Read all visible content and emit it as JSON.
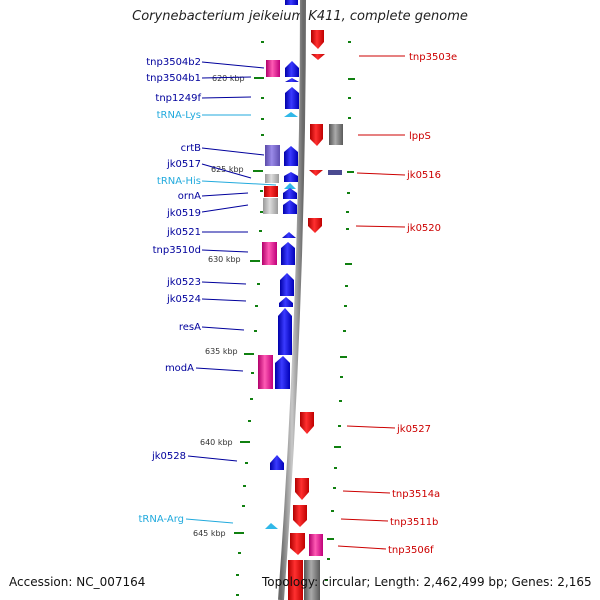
{
  "title": "Corynebacterium jeikeium K411, complete genome",
  "footer": {
    "accession": "Accession: NC_007164",
    "topology": "Topology: circular; Length: 2,462,499 bp; Genes: 2,165"
  },
  "colors": {
    "label_left": "#00009c",
    "label_trna": "#22aadd",
    "label_right": "#cc0000",
    "gene_blue": "#1010e0",
    "gene_red": "#e01010",
    "gene_pink": "#e0148c",
    "gene_grey": "#808080",
    "trna": "#30b8e8",
    "tick": "#108010"
  },
  "kbp_marks": [
    "620 kbp",
    "625 kbp",
    "630 kbp",
    "635 kbp",
    "640 kbp",
    "645 kbp"
  ],
  "labels_left": [
    "tnp3504b2",
    "tnp3504b1",
    "tnp1249f",
    "tRNA-Lys",
    "crtB",
    "jk0517",
    "tRNA-His",
    "ornA",
    "jk0519",
    "jk0521",
    "tnp3510d",
    "jk0523",
    "jk0524",
    "resA",
    "modA",
    "jk0528",
    "tRNA-Arg"
  ],
  "labels_right": [
    "tnp3503e",
    "lppS",
    "jk0516",
    "jk0520",
    "jk0527",
    "tnp3514a",
    "tnp3511b",
    "tnp3506f"
  ]
}
